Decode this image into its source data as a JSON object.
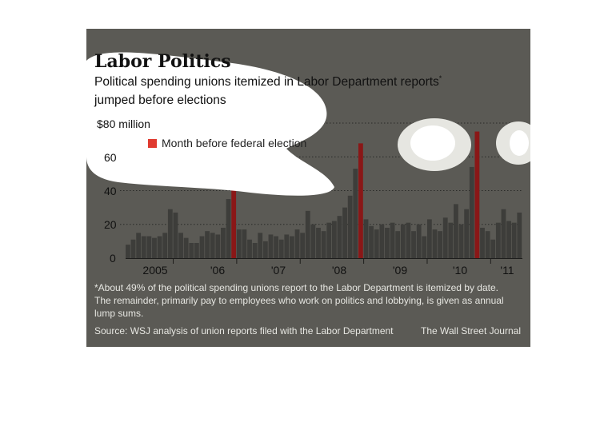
{
  "chart_data": {
    "type": "bar",
    "title": "Labor Politics",
    "subtitle_line1": "Political spending unions itemized in Labor Department reports",
    "subtitle_mark": "*",
    "subtitle_line2": "jumped before elections",
    "ylim": [
      0,
      80
    ],
    "yticks": [
      0,
      20,
      40,
      60,
      80
    ],
    "ytick_labels": [
      "0",
      "20",
      "40",
      "60",
      "$80 million"
    ],
    "grid": true,
    "xtick_labels": [
      "2005",
      "'06",
      "'07",
      "'08",
      "'09",
      "'10",
      "'11"
    ],
    "legend": [
      {
        "label": "Month before federal election",
        "color": "#e03a2f"
      }
    ],
    "highlight_color": "#8a1717",
    "bar_color": "#3d3d3a",
    "values": [
      8,
      11,
      15,
      13,
      13,
      12,
      13,
      15,
      29,
      27,
      15,
      12,
      9,
      9,
      13,
      16,
      15,
      14,
      18,
      35,
      48,
      17,
      17,
      11,
      9,
      15,
      10,
      14,
      13,
      11,
      14,
      13,
      17,
      15,
      28,
      20,
      18,
      16,
      21,
      22,
      25,
      30,
      37,
      53,
      68,
      23,
      19,
      17,
      20,
      18,
      21,
      16,
      20,
      21,
      16,
      20,
      13,
      23,
      17,
      16,
      24,
      21,
      32,
      20,
      29,
      54,
      75,
      18,
      16,
      11,
      21,
      29,
      22,
      21,
      27
    ],
    "highlight_indices": [
      20,
      44,
      66
    ],
    "footnote_lines": [
      "*About 49% of the political spending unions report to the Labor Department is itemized by date.",
      "The remainder, primarily pay to employees who work on politics and lobbying, is given as annual",
      "lump sums."
    ],
    "source": "Source: WSJ analysis of union reports filed with the Labor Department",
    "credit": "The Wall Street Journal"
  }
}
